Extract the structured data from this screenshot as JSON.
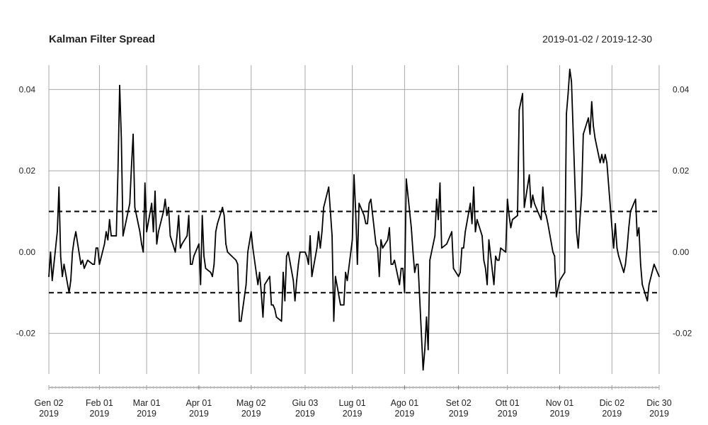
{
  "chart_data": {
    "type": "line",
    "title": "Kalman Filter Spread",
    "date_range": "2019-01-02 / 2019-12-30",
    "xlabel": "",
    "ylabel": "",
    "xlim": [
      "2019-01-02",
      "2019-12-30"
    ],
    "ylim": [
      -0.03,
      0.046
    ],
    "y_ticks": [
      -0.02,
      0.0,
      0.02,
      0.04
    ],
    "y_tick_labels": [
      "-0.02",
      "0.00",
      "0.02",
      "0.04"
    ],
    "x_ticks": [
      {
        "date": "2019-01-02",
        "label_line1": "Gen 02",
        "label_line2": "2019"
      },
      {
        "date": "2019-02-01",
        "label_line1": "Feb 01",
        "label_line2": "2019"
      },
      {
        "date": "2019-03-01",
        "label_line1": "Mar 01",
        "label_line2": "2019"
      },
      {
        "date": "2019-04-01",
        "label_line1": "Apr 01",
        "label_line2": "2019"
      },
      {
        "date": "2019-05-02",
        "label_line1": "Mag 02",
        "label_line2": "2019"
      },
      {
        "date": "2019-06-03",
        "label_line1": "Giu 03",
        "label_line2": "2019"
      },
      {
        "date": "2019-07-01",
        "label_line1": "Lug 01",
        "label_line2": "2019"
      },
      {
        "date": "2019-08-01",
        "label_line1": "Ago 01",
        "label_line2": "2019"
      },
      {
        "date": "2019-09-02",
        "label_line1": "Set 02",
        "label_line2": "2019"
      },
      {
        "date": "2019-10-01",
        "label_line1": "Ott 01",
        "label_line2": "2019"
      },
      {
        "date": "2019-11-01",
        "label_line1": "Nov 01",
        "label_line2": "2019"
      },
      {
        "date": "2019-12-02",
        "label_line1": "Dic 02",
        "label_line2": "2019"
      },
      {
        "date": "2019-12-30",
        "label_line1": "Dic 30",
        "label_line2": "2019"
      }
    ],
    "grid": true,
    "hlines": [
      {
        "y": 0.01,
        "style": "dashed"
      },
      {
        "y": -0.01,
        "style": "dashed"
      }
    ],
    "series": [
      {
        "color": "#000000",
        "points": [
          [
            "2019-01-02",
            -0.006
          ],
          [
            "2019-01-03",
            0.0
          ],
          [
            "2019-01-04",
            -0.007
          ],
          [
            "2019-01-07",
            0.005
          ],
          [
            "2019-01-08",
            0.016
          ],
          [
            "2019-01-09",
            -0.001
          ],
          [
            "2019-01-10",
            -0.006
          ],
          [
            "2019-01-11",
            -0.003
          ],
          [
            "2019-01-14",
            -0.01
          ],
          [
            "2019-01-15",
            -0.007
          ],
          [
            "2019-01-16",
            0.0
          ],
          [
            "2019-01-17",
            0.003
          ],
          [
            "2019-01-18",
            0.005
          ],
          [
            "2019-01-21",
            -0.003
          ],
          [
            "2019-01-22",
            -0.002
          ],
          [
            "2019-01-23",
            -0.004
          ],
          [
            "2019-01-24",
            -0.003
          ],
          [
            "2019-01-25",
            -0.002
          ],
          [
            "2019-01-28",
            -0.003
          ],
          [
            "2019-01-29",
            -0.003
          ],
          [
            "2019-01-30",
            0.001
          ],
          [
            "2019-01-31",
            0.001
          ],
          [
            "2019-02-01",
            -0.003
          ],
          [
            "2019-02-04",
            0.002
          ],
          [
            "2019-02-05",
            0.005
          ],
          [
            "2019-02-06",
            0.003
          ],
          [
            "2019-02-07",
            0.008
          ],
          [
            "2019-02-08",
            0.004
          ],
          [
            "2019-02-11",
            0.004
          ],
          [
            "2019-02-12",
            0.02
          ],
          [
            "2019-02-13",
            0.041
          ],
          [
            "2019-02-14",
            0.028
          ],
          [
            "2019-02-15",
            0.004
          ],
          [
            "2019-02-18",
            0.01
          ],
          [
            "2019-02-19",
            0.012
          ],
          [
            "2019-02-20",
            0.021
          ],
          [
            "2019-02-21",
            0.029
          ],
          [
            "2019-02-22",
            0.011
          ],
          [
            "2019-02-25",
            0.005
          ],
          [
            "2019-02-26",
            0.002
          ],
          [
            "2019-02-27",
            0.0
          ],
          [
            "2019-02-28",
            0.017
          ],
          [
            "2019-03-01",
            0.005
          ],
          [
            "2019-03-04",
            0.012
          ],
          [
            "2019-03-05",
            0.005
          ],
          [
            "2019-03-06",
            0.015
          ],
          [
            "2019-03-07",
            0.002
          ],
          [
            "2019-03-08",
            0.005
          ],
          [
            "2019-03-11",
            0.01
          ],
          [
            "2019-03-12",
            0.013
          ],
          [
            "2019-03-13",
            0.009
          ],
          [
            "2019-03-14",
            0.011
          ],
          [
            "2019-03-15",
            0.004
          ],
          [
            "2019-03-18",
            0.0
          ],
          [
            "2019-03-19",
            0.004
          ],
          [
            "2019-03-20",
            0.009
          ],
          [
            "2019-03-21",
            0.001
          ],
          [
            "2019-03-22",
            0.002
          ],
          [
            "2019-03-25",
            0.004
          ],
          [
            "2019-03-26",
            0.009
          ],
          [
            "2019-03-27",
            -0.003
          ],
          [
            "2019-03-28",
            -0.003
          ],
          [
            "2019-03-29",
            -0.001
          ],
          [
            "2019-04-01",
            0.002
          ],
          [
            "2019-04-02",
            -0.008
          ],
          [
            "2019-04-03",
            0.009
          ],
          [
            "2019-04-04",
            -0.001
          ],
          [
            "2019-04-05",
            -0.004
          ],
          [
            "2019-04-08",
            -0.005
          ],
          [
            "2019-04-09",
            -0.006
          ],
          [
            "2019-04-10",
            -0.003
          ],
          [
            "2019-04-11",
            0.005
          ],
          [
            "2019-04-12",
            0.007
          ],
          [
            "2019-04-15",
            0.011
          ],
          [
            "2019-04-16",
            0.009
          ],
          [
            "2019-04-17",
            0.002
          ],
          [
            "2019-04-18",
            0.0
          ],
          [
            "2019-04-23",
            -0.002
          ],
          [
            "2019-04-24",
            -0.003
          ],
          [
            "2019-04-25",
            -0.017
          ],
          [
            "2019-04-26",
            -0.017
          ],
          [
            "2019-04-29",
            -0.008
          ],
          [
            "2019-04-30",
            0.0
          ],
          [
            "2019-05-02",
            0.005
          ],
          [
            "2019-05-03",
            0.001
          ],
          [
            "2019-05-06",
            -0.008
          ],
          [
            "2019-05-07",
            -0.005
          ],
          [
            "2019-05-08",
            -0.01
          ],
          [
            "2019-05-09",
            -0.016
          ],
          [
            "2019-05-10",
            -0.008
          ],
          [
            "2019-05-13",
            -0.006
          ],
          [
            "2019-05-14",
            -0.013
          ],
          [
            "2019-05-15",
            -0.013
          ],
          [
            "2019-05-16",
            -0.014
          ],
          [
            "2019-05-17",
            -0.016
          ],
          [
            "2019-05-20",
            -0.017
          ],
          [
            "2019-05-21",
            -0.005
          ],
          [
            "2019-05-22",
            -0.012
          ],
          [
            "2019-05-23",
            -0.001
          ],
          [
            "2019-05-24",
            0.0
          ],
          [
            "2019-05-27",
            -0.007
          ],
          [
            "2019-05-28",
            -0.012
          ],
          [
            "2019-05-29",
            -0.007
          ],
          [
            "2019-05-30",
            -0.003
          ],
          [
            "2019-05-31",
            0.0
          ],
          [
            "2019-06-03",
            0.0
          ],
          [
            "2019-06-04",
            -0.001
          ],
          [
            "2019-06-05",
            -0.003
          ],
          [
            "2019-06-06",
            0.004
          ],
          [
            "2019-06-07",
            -0.006
          ],
          [
            "2019-06-10",
            0.001
          ],
          [
            "2019-06-11",
            0.005
          ],
          [
            "2019-06-12",
            0.001
          ],
          [
            "2019-06-13",
            0.005
          ],
          [
            "2019-06-14",
            0.011
          ],
          [
            "2019-06-17",
            0.016
          ],
          [
            "2019-06-18",
            0.01
          ],
          [
            "2019-06-19",
            0.004
          ],
          [
            "2019-06-20",
            -0.017
          ],
          [
            "2019-06-21",
            -0.006
          ],
          [
            "2019-06-24",
            -0.013
          ],
          [
            "2019-06-25",
            -0.013
          ],
          [
            "2019-06-26",
            -0.013
          ],
          [
            "2019-06-27",
            -0.005
          ],
          [
            "2019-06-28",
            -0.007
          ],
          [
            "2019-07-01",
            0.003
          ],
          [
            "2019-07-02",
            0.019
          ],
          [
            "2019-07-03",
            0.01
          ],
          [
            "2019-07-04",
            -0.003
          ],
          [
            "2019-07-05",
            0.012
          ],
          [
            "2019-07-08",
            0.009
          ],
          [
            "2019-07-09",
            0.007
          ],
          [
            "2019-07-10",
            0.007
          ],
          [
            "2019-07-11",
            0.012
          ],
          [
            "2019-07-12",
            0.013
          ],
          [
            "2019-07-15",
            0.002
          ],
          [
            "2019-07-16",
            0.001
          ],
          [
            "2019-07-17",
            -0.006
          ],
          [
            "2019-07-18",
            0.003
          ],
          [
            "2019-07-19",
            0.001
          ],
          [
            "2019-07-22",
            0.003
          ],
          [
            "2019-07-23",
            0.006
          ],
          [
            "2019-07-24",
            -0.003
          ],
          [
            "2019-07-25",
            -0.003
          ],
          [
            "2019-07-26",
            -0.002
          ],
          [
            "2019-07-29",
            -0.008
          ],
          [
            "2019-07-30",
            -0.004
          ],
          [
            "2019-07-31",
            -0.004
          ],
          [
            "2019-08-01",
            -0.01
          ],
          [
            "2019-08-02",
            0.018
          ],
          [
            "2019-08-05",
            0.006
          ],
          [
            "2019-08-06",
            0.0
          ],
          [
            "2019-08-07",
            -0.005
          ],
          [
            "2019-08-08",
            -0.003
          ],
          [
            "2019-08-09",
            -0.003
          ],
          [
            "2019-08-12",
            -0.029
          ],
          [
            "2019-08-13",
            -0.024
          ],
          [
            "2019-08-14",
            -0.016
          ],
          [
            "2019-08-15",
            -0.024
          ],
          [
            "2019-08-16",
            -0.002
          ],
          [
            "2019-08-19",
            0.004
          ],
          [
            "2019-08-20",
            0.013
          ],
          [
            "2019-08-21",
            0.008
          ],
          [
            "2019-08-22",
            0.017
          ],
          [
            "2019-08-23",
            0.001
          ],
          [
            "2019-08-26",
            0.002
          ],
          [
            "2019-08-27",
            0.003
          ],
          [
            "2019-08-28",
            0.004
          ],
          [
            "2019-08-29",
            0.005
          ],
          [
            "2019-08-30",
            -0.004
          ],
          [
            "2019-09-02",
            -0.006
          ],
          [
            "2019-09-03",
            -0.005
          ],
          [
            "2019-09-04",
            0.001
          ],
          [
            "2019-09-05",
            0.001
          ],
          [
            "2019-09-06",
            0.005
          ],
          [
            "2019-09-09",
            0.012
          ],
          [
            "2019-09-10",
            0.007
          ],
          [
            "2019-09-11",
            0.016
          ],
          [
            "2019-09-12",
            0.005
          ],
          [
            "2019-09-13",
            0.008
          ],
          [
            "2019-09-16",
            0.004
          ],
          [
            "2019-09-17",
            -0.002
          ],
          [
            "2019-09-18",
            -0.004
          ],
          [
            "2019-09-19",
            -0.008
          ],
          [
            "2019-09-20",
            0.003
          ],
          [
            "2019-09-23",
            -0.008
          ],
          [
            "2019-09-24",
            -0.001
          ],
          [
            "2019-09-25",
            -0.002
          ],
          [
            "2019-09-26",
            -0.002
          ],
          [
            "2019-09-27",
            0.001
          ],
          [
            "2019-09-30",
            0.0
          ],
          [
            "2019-10-01",
            0.013
          ],
          [
            "2019-10-02",
            0.009
          ],
          [
            "2019-10-03",
            0.006
          ],
          [
            "2019-10-04",
            0.008
          ],
          [
            "2019-10-07",
            0.009
          ],
          [
            "2019-10-08",
            0.035
          ],
          [
            "2019-10-09",
            0.037
          ],
          [
            "2019-10-10",
            0.039
          ],
          [
            "2019-10-11",
            0.011
          ],
          [
            "2019-10-14",
            0.019
          ],
          [
            "2019-10-15",
            0.011
          ],
          [
            "2019-10-16",
            0.014
          ],
          [
            "2019-10-17",
            0.012
          ],
          [
            "2019-10-18",
            0.011
          ],
          [
            "2019-10-21",
            0.008
          ],
          [
            "2019-10-22",
            0.016
          ],
          [
            "2019-10-23",
            0.01
          ],
          [
            "2019-10-24",
            0.009
          ],
          [
            "2019-10-25",
            0.007
          ],
          [
            "2019-10-28",
            0.0
          ],
          [
            "2019-10-29",
            -0.001
          ],
          [
            "2019-10-30",
            -0.011
          ],
          [
            "2019-10-31",
            -0.009
          ],
          [
            "2019-11-01",
            -0.007
          ],
          [
            "2019-11-04",
            -0.005
          ],
          [
            "2019-11-05",
            0.034
          ],
          [
            "2019-11-06",
            0.039
          ],
          [
            "2019-11-07",
            0.045
          ],
          [
            "2019-11-08",
            0.042
          ],
          [
            "2019-11-11",
            0.005
          ],
          [
            "2019-11-12",
            0.001
          ],
          [
            "2019-11-13",
            0.008
          ],
          [
            "2019-11-14",
            0.014
          ],
          [
            "2019-11-15",
            0.029
          ],
          [
            "2019-11-18",
            0.033
          ],
          [
            "2019-11-19",
            0.029
          ],
          [
            "2019-11-20",
            0.037
          ],
          [
            "2019-11-21",
            0.031
          ],
          [
            "2019-11-22",
            0.028
          ],
          [
            "2019-11-25",
            0.022
          ],
          [
            "2019-11-26",
            0.024
          ],
          [
            "2019-11-27",
            0.022
          ],
          [
            "2019-11-28",
            0.024
          ],
          [
            "2019-11-29",
            0.022
          ],
          [
            "2019-12-02",
            0.006
          ],
          [
            "2019-12-03",
            0.001
          ],
          [
            "2019-12-04",
            0.007
          ],
          [
            "2019-12-05",
            0.001
          ],
          [
            "2019-12-06",
            -0.001
          ],
          [
            "2019-12-09",
            -0.005
          ],
          [
            "2019-12-10",
            -0.003
          ],
          [
            "2019-12-11",
            0.001
          ],
          [
            "2019-12-12",
            0.006
          ],
          [
            "2019-12-13",
            0.01
          ],
          [
            "2019-12-16",
            0.013
          ],
          [
            "2019-12-17",
            0.004
          ],
          [
            "2019-12-18",
            0.006
          ],
          [
            "2019-12-19",
            -0.003
          ],
          [
            "2019-12-20",
            -0.008
          ],
          [
            "2019-12-23",
            -0.012
          ],
          [
            "2019-12-24",
            -0.008
          ],
          [
            "2019-12-27",
            -0.003
          ],
          [
            "2019-12-30",
            -0.006
          ]
        ]
      }
    ]
  }
}
